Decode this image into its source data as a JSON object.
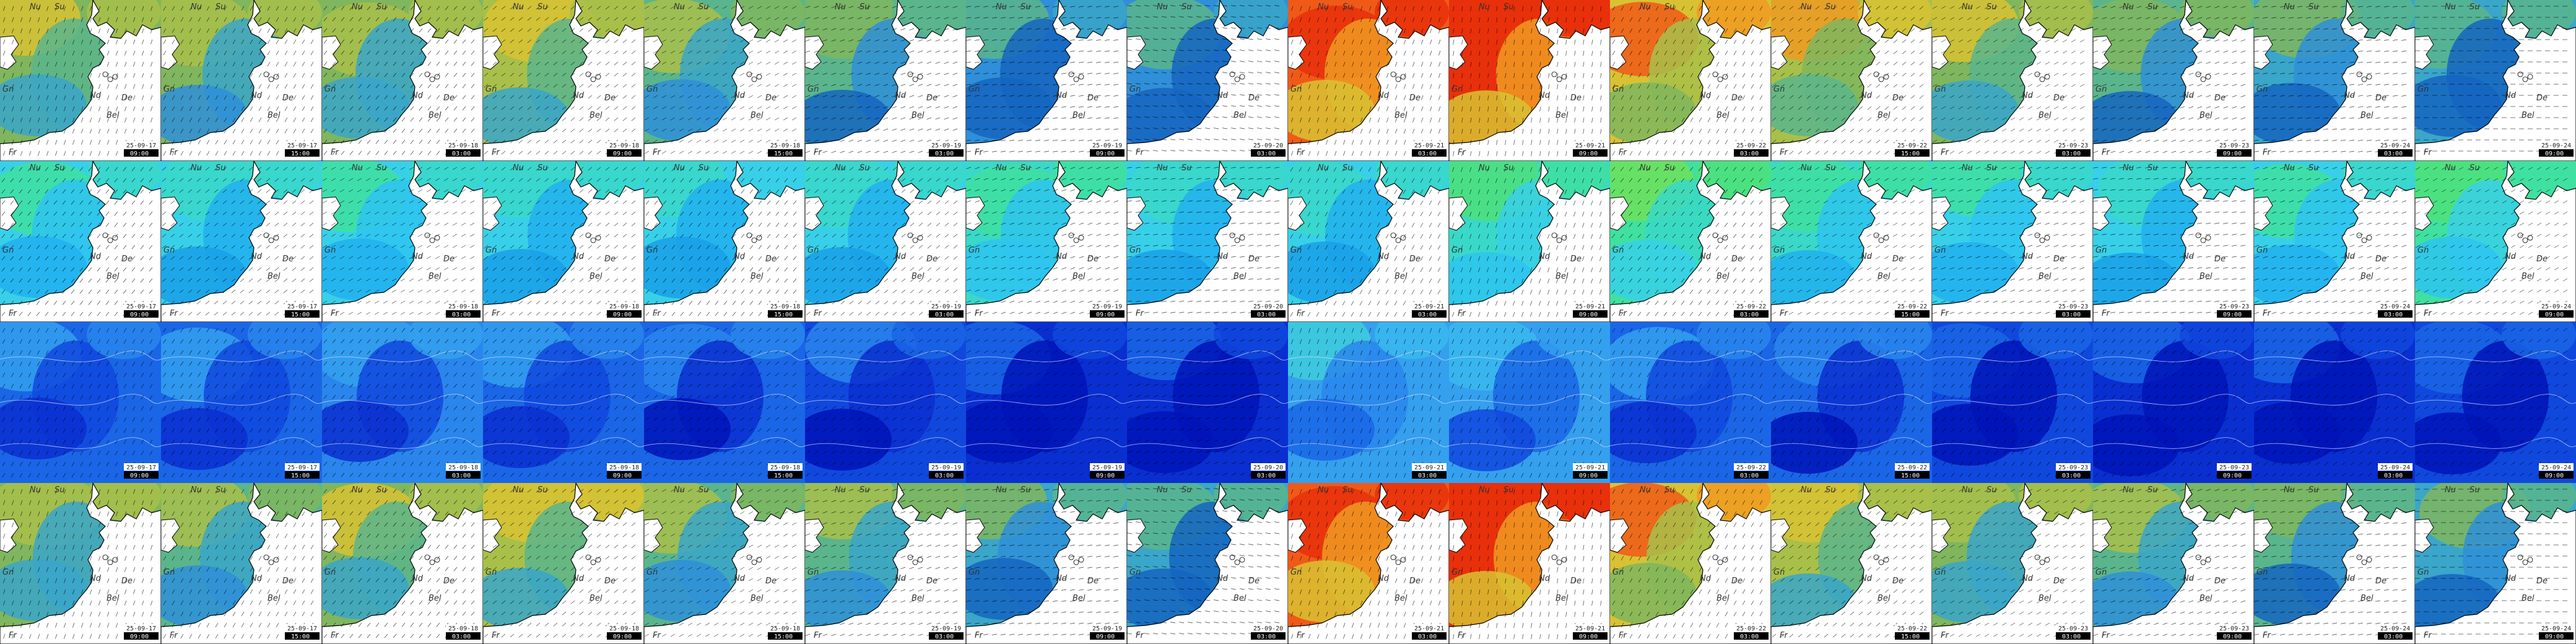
{
  "columns": [
    {
      "date": "25-09-17",
      "time": "09:00"
    },
    {
      "date": "25-09-17",
      "time": "15:00"
    },
    {
      "date": "25-09-18",
      "time": "03:00"
    },
    {
      "date": "25-09-18",
      "time": "09:00"
    },
    {
      "date": "25-09-18",
      "time": "15:00"
    },
    {
      "date": "25-09-19",
      "time": "03:00"
    },
    {
      "date": "25-09-19",
      "time": "09:00"
    },
    {
      "date": "25-09-20",
      "time": "03:00"
    },
    {
      "date": "25-09-21",
      "time": "03:00"
    },
    {
      "date": "25-09-21",
      "time": "09:00"
    },
    {
      "date": "25-09-22",
      "time": "03:00"
    },
    {
      "date": "25-09-22",
      "time": "15:00"
    },
    {
      "date": "25-09-23",
      "time": "03:00"
    },
    {
      "date": "25-09-23",
      "time": "09:00"
    },
    {
      "date": "25-09-24",
      "time": "03:00"
    },
    {
      "date": "25-09-24",
      "time": "09:00"
    }
  ],
  "map_labels": {
    "nu": "Nu",
    "su": "Su",
    "nd": "Nd",
    "de": "De",
    "gb": "Gn",
    "be": "Bel",
    "fr": "Fr"
  },
  "rows": [
    {
      "name": "wind-speed-row",
      "palette": "warm",
      "levels": [
        0.45,
        0.4,
        0.42,
        0.5,
        0.35,
        0.28,
        0.15,
        0.12,
        0.9,
        0.95,
        0.7,
        0.55,
        0.45,
        0.3,
        0.25,
        0.2
      ],
      "wind_dir_deg": [
        200,
        210,
        220,
        230,
        240,
        250,
        260,
        280,
        200,
        190,
        210,
        230,
        240,
        250,
        260,
        270
      ]
    },
    {
      "name": "wave-height-row",
      "palette": "cool",
      "levels": [
        0.35,
        0.3,
        0.32,
        0.3,
        0.28,
        0.3,
        0.42,
        0.3,
        0.3,
        0.45,
        0.55,
        0.4,
        0.32,
        0.3,
        0.35,
        0.5
      ],
      "wind_dir_deg": [
        220,
        230,
        240,
        230,
        220,
        230,
        250,
        260,
        210,
        200,
        220,
        240,
        250,
        260,
        250,
        240
      ]
    },
    {
      "name": "current-row",
      "palette": "sea",
      "levels": [
        0.35,
        0.38,
        0.4,
        0.32,
        0.3,
        0.25,
        0.15,
        0.1,
        0.55,
        0.5,
        0.35,
        0.3,
        0.2,
        0.15,
        0.1,
        0.18
      ],
      "wind_dir_deg": [
        210,
        215,
        220,
        225,
        230,
        235,
        240,
        245,
        200,
        205,
        210,
        215,
        220,
        225,
        230,
        235
      ]
    },
    {
      "name": "gust-row",
      "palette": "warm",
      "levels": [
        0.42,
        0.38,
        0.45,
        0.52,
        0.38,
        0.35,
        0.25,
        0.2,
        0.92,
        0.96,
        0.72,
        0.5,
        0.42,
        0.32,
        0.28,
        0.24
      ],
      "wind_dir_deg": [
        200,
        210,
        220,
        230,
        240,
        250,
        260,
        280,
        200,
        190,
        210,
        230,
        240,
        250,
        260,
        270
      ]
    }
  ]
}
